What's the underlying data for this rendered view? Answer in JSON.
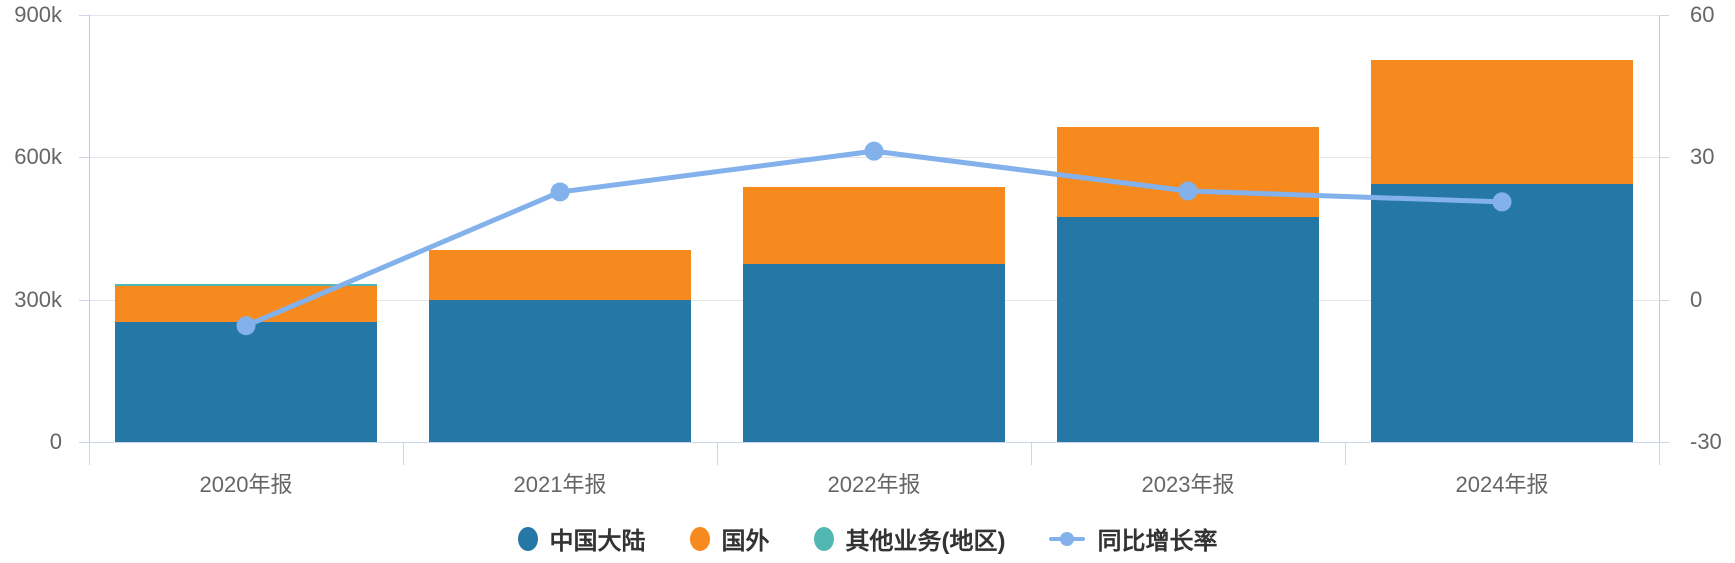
{
  "chart_data": {
    "type": "bar",
    "subtype": "stacked-bar-with-line",
    "title": "",
    "categories": [
      "2020年报",
      "2021年报",
      "2022年报",
      "2023年报",
      "2024年报"
    ],
    "series": [
      {
        "name": "中国大陆",
        "type": "bar",
        "stack": true,
        "color": "#2578a5",
        "values": [
          253000,
          300000,
          375000,
          474000,
          544000
        ]
      },
      {
        "name": "国外",
        "type": "bar",
        "stack": true,
        "color": "#f68a1e",
        "values": [
          76000,
          104000,
          162000,
          190000,
          262000
        ]
      },
      {
        "name": "其他业务(地区)",
        "type": "bar",
        "stack": true,
        "color": "#52b7b0",
        "values": [
          4000,
          0,
          0,
          0,
          0
        ]
      },
      {
        "name": "同比增长率",
        "type": "line",
        "axis": "right",
        "color": "#82b1eb",
        "values": [
          -5.5,
          22.7,
          31.3,
          22.9,
          20.6
        ]
      }
    ],
    "stack_totals": [
      333000,
      404000,
      537000,
      664000,
      806000
    ],
    "y_axis_left": {
      "tick_labels": [
        "900k",
        "600k",
        "300k",
        "0"
      ],
      "tick_values": [
        900000,
        600000,
        300000,
        0
      ],
      "min": 0,
      "max": 900000
    },
    "y_axis_right": {
      "tick_labels": [
        "60",
        "30",
        "0",
        "-30"
      ],
      "tick_values": [
        60,
        30,
        0,
        -30
      ],
      "min": -30,
      "max": 60
    },
    "grid": true,
    "legend_position": "bottom",
    "legend": [
      {
        "label": "中国大陆",
        "marker": "circle",
        "color": "#2578a5"
      },
      {
        "label": "国外",
        "marker": "circle",
        "color": "#f68a1e"
      },
      {
        "label": "其他业务(地区)",
        "marker": "circle",
        "color": "#52b7b0"
      },
      {
        "label": "同比增长率",
        "marker": "line-dot",
        "color": "#82b1eb"
      }
    ]
  },
  "colors": {
    "grid": "#e6e6e6",
    "x_axis_line": "#ccd6eb",
    "y_axis_border": "#cccccc",
    "axis_label": "#666666",
    "legend_text": "#333333",
    "background": "#ffffff"
  }
}
